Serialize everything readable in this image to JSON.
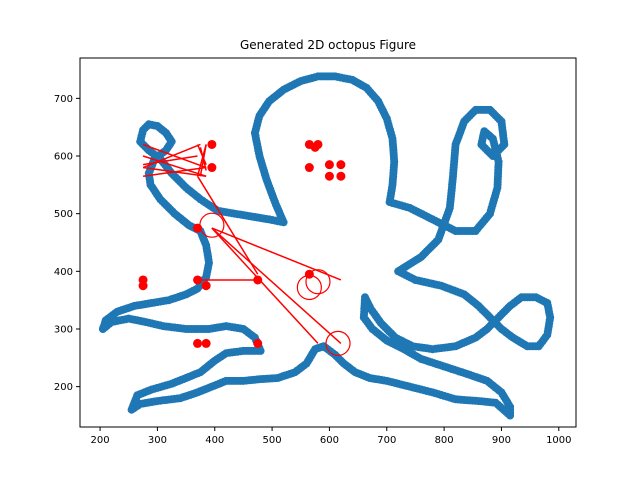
{
  "chart_data": {
    "type": "scatter",
    "title": "Generated 2D octopus Figure",
    "xlabel": "",
    "ylabel": "",
    "xlim": [
      165,
      1030
    ],
    "ylim": [
      130,
      770
    ],
    "xticks": [
      200,
      300,
      400,
      500,
      600,
      700,
      800,
      900,
      1000
    ],
    "yticks": [
      200,
      300,
      400,
      500,
      600,
      700
    ],
    "grid": false,
    "legend": "none",
    "colors": {
      "outline": "#1f77b4",
      "overlay": "#ff0000"
    },
    "outline": [
      [
        520,
        485
      ],
      [
        505,
        520
      ],
      [
        490,
        560
      ],
      [
        478,
        600
      ],
      [
        470,
        640
      ],
      [
        478,
        670
      ],
      [
        495,
        695
      ],
      [
        520,
        715
      ],
      [
        550,
        730
      ],
      [
        580,
        738
      ],
      [
        610,
        738
      ],
      [
        640,
        732
      ],
      [
        665,
        718
      ],
      [
        685,
        695
      ],
      [
        700,
        665
      ],
      [
        710,
        630
      ],
      [
        713,
        590
      ],
      [
        710,
        550
      ],
      [
        705,
        520
      ],
      [
        740,
        510
      ],
      [
        780,
        490
      ],
      [
        820,
        470
      ],
      [
        855,
        470
      ],
      [
        880,
        500
      ],
      [
        893,
        545
      ],
      [
        895,
        590
      ],
      [
        885,
        630
      ],
      [
        870,
        643
      ],
      [
        865,
        620
      ],
      [
        885,
        600
      ],
      [
        905,
        620
      ],
      [
        900,
        660
      ],
      [
        880,
        680
      ],
      [
        855,
        680
      ],
      [
        835,
        660
      ],
      [
        820,
        620
      ],
      [
        815,
        560
      ],
      [
        810,
        510
      ],
      [
        790,
        455
      ],
      [
        760,
        425
      ],
      [
        720,
        400
      ],
      [
        750,
        385
      ],
      [
        795,
        375
      ],
      [
        835,
        360
      ],
      [
        860,
        340
      ],
      [
        880,
        320
      ],
      [
        900,
        300
      ],
      [
        920,
        285
      ],
      [
        945,
        270
      ],
      [
        965,
        270
      ],
      [
        980,
        290
      ],
      [
        985,
        320
      ],
      [
        980,
        345
      ],
      [
        960,
        355
      ],
      [
        935,
        355
      ],
      [
        915,
        340
      ],
      [
        895,
        320
      ],
      [
        875,
        300
      ],
      [
        855,
        285
      ],
      [
        820,
        270
      ],
      [
        780,
        265
      ],
      [
        745,
        270
      ],
      [
        715,
        285
      ],
      [
        690,
        310
      ],
      [
        672,
        335
      ],
      [
        662,
        355
      ],
      [
        660,
        320
      ],
      [
        675,
        300
      ],
      [
        700,
        280
      ],
      [
        730,
        265
      ],
      [
        760,
        248
      ],
      [
        800,
        235
      ],
      [
        840,
        222
      ],
      [
        875,
        210
      ],
      [
        900,
        190
      ],
      [
        915,
        165
      ],
      [
        915,
        150
      ],
      [
        890,
        172
      ],
      [
        860,
        175
      ],
      [
        820,
        178
      ],
      [
        780,
        190
      ],
      [
        740,
        200
      ],
      [
        700,
        210
      ],
      [
        670,
        215
      ],
      [
        645,
        225
      ],
      [
        625,
        240
      ],
      [
        610,
        255
      ],
      [
        590,
        270
      ],
      [
        575,
        265
      ],
      [
        560,
        240
      ],
      [
        540,
        225
      ],
      [
        510,
        215
      ],
      [
        480,
        213
      ],
      [
        450,
        210
      ],
      [
        420,
        210
      ],
      [
        395,
        200
      ],
      [
        370,
        190
      ],
      [
        340,
        180
      ],
      [
        300,
        175
      ],
      [
        270,
        170
      ],
      [
        255,
        160
      ],
      [
        265,
        185
      ],
      [
        290,
        195
      ],
      [
        325,
        205
      ],
      [
        350,
        215
      ],
      [
        375,
        225
      ],
      [
        400,
        245
      ],
      [
        420,
        258
      ],
      [
        450,
        262
      ],
      [
        480,
        262
      ],
      [
        470,
        285
      ],
      [
        450,
        300
      ],
      [
        420,
        305
      ],
      [
        390,
        300
      ],
      [
        350,
        300
      ],
      [
        310,
        305
      ],
      [
        280,
        312
      ],
      [
        250,
        318
      ],
      [
        220,
        312
      ],
      [
        205,
        300
      ],
      [
        210,
        315
      ],
      [
        230,
        330
      ],
      [
        260,
        340
      ],
      [
        290,
        345
      ],
      [
        320,
        350
      ],
      [
        350,
        360
      ],
      [
        370,
        370
      ],
      [
        385,
        390
      ],
      [
        390,
        415
      ],
      [
        385,
        445
      ],
      [
        375,
        470
      ],
      [
        355,
        480
      ],
      [
        330,
        500
      ],
      [
        305,
        525
      ],
      [
        288,
        550
      ],
      [
        285,
        570
      ],
      [
        295,
        595
      ],
      [
        315,
        610
      ],
      [
        325,
        625
      ],
      [
        315,
        640
      ],
      [
        300,
        652
      ],
      [
        285,
        655
      ],
      [
        275,
        645
      ],
      [
        270,
        625
      ],
      [
        285,
        610
      ],
      [
        305,
        595
      ],
      [
        325,
        570
      ],
      [
        350,
        545
      ],
      [
        375,
        525
      ],
      [
        405,
        505
      ],
      [
        435,
        500
      ],
      [
        465,
        495
      ],
      [
        495,
        490
      ]
    ],
    "segments": [
      [
        [
          275,
          385
        ],
        [
          565,
          580
        ]
      ],
      [
        [
          275,
          375
        ],
        [
          580,
          620
        ]
      ],
      [
        [
          275,
          385
        ],
        [
          600,
          565
        ]
      ],
      [
        [
          370,
          385
        ],
        [
          565,
          620
        ]
      ],
      [
        [
          370,
          385
        ],
        [
          620,
          585
        ]
      ],
      [
        [
          385,
          375
        ],
        [
          575,
          615
        ]
      ],
      [
        [
          385,
          375
        ],
        [
          620,
          565
        ]
      ],
      [
        [
          370,
          275
        ],
        [
          600,
          585
        ]
      ],
      [
        [
          385,
          275
        ],
        [
          565,
          580
        ]
      ],
      [
        [
          385,
          275
        ],
        [
          580,
          620
        ]
      ],
      [
        [
          395,
          620
        ],
        [
          475,
          385
        ]
      ],
      [
        [
          395,
          620
        ],
        [
          475,
          275
        ]
      ],
      [
        [
          395,
          580
        ],
        [
          475,
          275
        ]
      ],
      [
        [
          370,
          475
        ],
        [
          565,
          395
        ]
      ],
      [
        [
          370,
          475
        ],
        [
          385,
          385
        ]
      ]
    ],
    "markers": [
      [
        275,
        385
      ],
      [
        275,
        375
      ],
      [
        370,
        385
      ],
      [
        385,
        375
      ],
      [
        370,
        275
      ],
      [
        385,
        275
      ],
      [
        395,
        620
      ],
      [
        395,
        580
      ],
      [
        370,
        475
      ],
      [
        475,
        385
      ],
      [
        475,
        275
      ],
      [
        565,
        580
      ],
      [
        580,
        620
      ],
      [
        600,
        565
      ],
      [
        565,
        620
      ],
      [
        620,
        585
      ],
      [
        575,
        615
      ],
      [
        620,
        565
      ],
      [
        600,
        585
      ],
      [
        565,
        395
      ]
    ],
    "circles": [
      [
        395,
        480
      ],
      [
        565,
        372
      ],
      [
        580,
        382
      ],
      [
        615,
        275
      ]
    ]
  }
}
